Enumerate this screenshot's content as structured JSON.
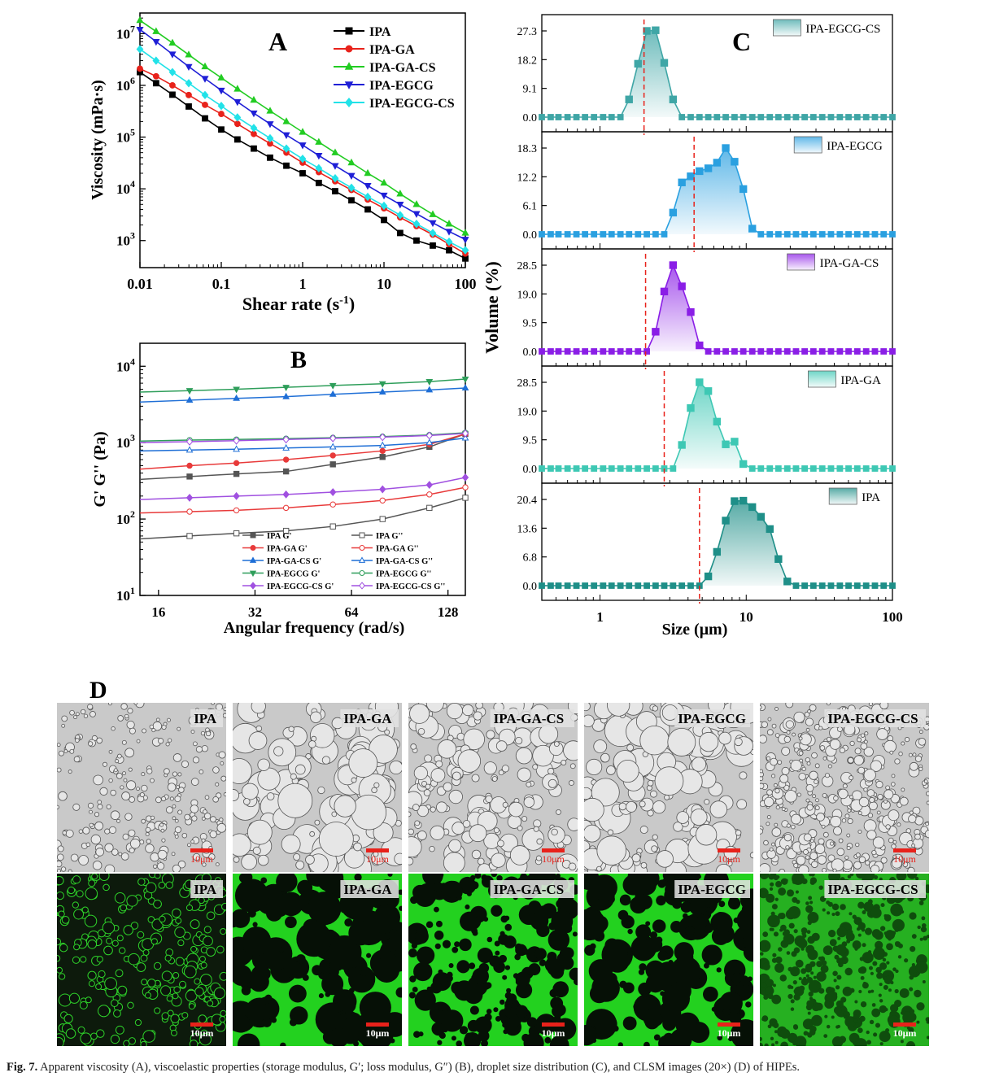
{
  "figure": {
    "caption_label": "Fig. 7.",
    "caption_text": "Apparent viscosity (A), viscoelastic properties (storage modulus, G′; loss modulus, G″) (B), droplet size distribution (C), and CLSM images (20×) (D) of HIPEs."
  },
  "panels": {
    "A": "A",
    "B": "B",
    "C": "C",
    "D": "D",
    "scale_bar": "10μm",
    "image_labels": [
      "IPA",
      "IPA-GA",
      "IPA-GA-CS",
      "IPA-EGCG",
      "IPA-EGCG-CS"
    ]
  },
  "colors": {
    "IPA": "#000000",
    "IPA-GA": "#e8221b",
    "IPA-GA-CS": "#22cc22",
    "IPA-EGCG": "#1f1fd6",
    "IPA-EGCG-CS": "#22e2e8",
    "B_IPA": "#555555",
    "B_IPA-GA": "#e83a3a",
    "B_IPA-GA-CS": "#1f6fd6",
    "B_IPA-EGCG": "#2e9e5a",
    "B_IPA-EGCG-CS": "#a050e0",
    "C_IPA-EGCG-CS": "#3fa6a6",
    "C_IPA-EGCG": "#2aa0e0",
    "C_IPA-GA-CS": "#8a1ee6",
    "C_IPA-GA": "#3ec8b4",
    "C_IPA": "#1f8f88",
    "median_line": "#e8221b",
    "clsm_green": "#23d11f"
  },
  "chart_data": [
    {
      "panel": "A",
      "type": "line",
      "xlabel": "Shear rate (s-1)",
      "ylabel": "Viscosity (mPa·s)",
      "x_scale": "log",
      "y_scale": "log",
      "xlim": [
        0.01,
        100
      ],
      "ylim": [
        300,
        25000000
      ],
      "x_ticks": [
        "0.01",
        "0.1",
        "1",
        "10",
        "100"
      ],
      "y_ticks": [
        "10^3",
        "10^4",
        "10^5",
        "10^6",
        "10^7"
      ],
      "legend": "top-right",
      "x": [
        0.01,
        0.0158,
        0.0251,
        0.0398,
        0.0631,
        0.1,
        0.158,
        0.251,
        0.398,
        0.631,
        1,
        1.58,
        2.51,
        3.98,
        6.31,
        10,
        15.8,
        25.1,
        39.8,
        63.1,
        100
      ],
      "series": [
        {
          "name": "IPA",
          "marker": "square",
          "values": [
            1800000,
            1100000,
            660000,
            390000,
            230000,
            140000,
            90000,
            60000,
            40000,
            28000,
            20000,
            13000,
            9000,
            6000,
            4000,
            2500,
            1400,
            1000,
            800,
            650,
            450
          ]
        },
        {
          "name": "IPA-GA",
          "marker": "circle",
          "values": [
            2100000,
            1500000,
            1000000,
            650000,
            420000,
            280000,
            180000,
            115000,
            75000,
            50000,
            32000,
            21000,
            14000,
            9500,
            6200,
            4200,
            2800,
            1900,
            1300,
            850,
            560
          ]
        },
        {
          "name": "IPA-GA-CS",
          "marker": "triangle-up",
          "values": [
            18000000,
            11000000,
            6600000,
            3900000,
            2300000,
            1400000,
            850000,
            520000,
            320000,
            200000,
            125000,
            80000,
            50000,
            32000,
            20000,
            13000,
            8000,
            5000,
            3200,
            2100,
            1400
          ]
        },
        {
          "name": "IPA-EGCG",
          "marker": "triangle-down",
          "values": [
            12000000,
            7000000,
            4000000,
            2300000,
            1350000,
            800000,
            480000,
            290000,
            180000,
            110000,
            70000,
            44000,
            28000,
            18000,
            11500,
            7500,
            5000,
            3300,
            2200,
            1500,
            1050
          ]
        },
        {
          "name": "IPA-EGCG-CS",
          "marker": "diamond",
          "values": [
            5000000,
            3000000,
            1800000,
            1100000,
            650000,
            400000,
            240000,
            150000,
            95000,
            60000,
            38000,
            25000,
            16000,
            10500,
            7000,
            4700,
            3100,
            2100,
            1400,
            950,
            650
          ]
        }
      ]
    },
    {
      "panel": "B",
      "type": "line",
      "xlabel": "Angular frequency (rad/s)",
      "ylabel": "G' G'' (Pa)",
      "x_scale": "log2",
      "y_scale": "log",
      "xlim": [
        14,
        145
      ],
      "ylim": [
        10,
        20000
      ],
      "x_ticks": [
        "16",
        "32",
        "64",
        "128"
      ],
      "y_ticks": [
        "10^1",
        "10^2",
        "10^3",
        "10^4"
      ],
      "legend": "bottom-left",
      "x": [
        14,
        20,
        28,
        40,
        56,
        80,
        112,
        145
      ],
      "series": [
        {
          "name": "IPA G'",
          "filled": true,
          "marker": "square",
          "values": [
            330,
            360,
            390,
            420,
            520,
            650,
            880,
            1300
          ]
        },
        {
          "name": "IPA G''",
          "filled": false,
          "marker": "square",
          "values": [
            55,
            60,
            65,
            70,
            80,
            100,
            140,
            190
          ]
        },
        {
          "name": "IPA-GA G'",
          "filled": true,
          "marker": "circle",
          "values": [
            450,
            500,
            540,
            600,
            680,
            780,
            950,
            1300
          ]
        },
        {
          "name": "IPA-GA G''",
          "filled": false,
          "marker": "circle",
          "values": [
            120,
            125,
            130,
            140,
            155,
            175,
            210,
            260
          ]
        },
        {
          "name": "IPA-GA-CS G'",
          "filled": true,
          "marker": "triangle-up",
          "values": [
            3400,
            3600,
            3800,
            4000,
            4300,
            4600,
            4900,
            5200
          ]
        },
        {
          "name": "IPA-GA-CS G''",
          "filled": false,
          "marker": "triangle-up",
          "values": [
            780,
            800,
            820,
            850,
            880,
            920,
            1000,
            1150
          ]
        },
        {
          "name": "IPA-EGCG G'",
          "filled": true,
          "marker": "triangle-down",
          "values": [
            4600,
            4800,
            5000,
            5300,
            5600,
            5900,
            6300,
            6800
          ]
        },
        {
          "name": "IPA-EGCG G''",
          "filled": false,
          "marker": "circle",
          "values": [
            1050,
            1080,
            1100,
            1130,
            1160,
            1200,
            1260,
            1350
          ]
        },
        {
          "name": "IPA-EGCG-CS G'",
          "filled": true,
          "marker": "diamond",
          "values": [
            180,
            190,
            200,
            210,
            225,
            245,
            280,
            350
          ]
        },
        {
          "name": "IPA-EGCG-CS G''",
          "filled": false,
          "marker": "diamond",
          "values": [
            1000,
            1030,
            1060,
            1100,
            1140,
            1180,
            1240,
            1320
          ]
        }
      ]
    },
    {
      "panel": "C",
      "type": "area",
      "xlabel": "Size (μm)",
      "ylabel": "Volume (%)",
      "x_scale": "log",
      "xlim": [
        0.4,
        100
      ],
      "x_ticks": [
        "1",
        "10",
        "100"
      ],
      "legend": "top-right",
      "x": [
        0.4,
        0.46,
        0.52,
        0.6,
        0.69,
        0.79,
        0.91,
        1.05,
        1.2,
        1.38,
        1.58,
        1.82,
        2.09,
        2.4,
        2.75,
        3.16,
        3.63,
        4.17,
        4.79,
        5.5,
        6.31,
        7.24,
        8.32,
        9.55,
        11,
        12.6,
        14.5,
        16.6,
        19.1,
        21.9,
        25.1,
        28.8,
        33.1,
        38,
        43.7,
        50.1,
        57.5,
        66.1,
        75.9,
        87.1,
        100
      ],
      "subplots": [
        {
          "name": "IPA-EGCG-CS",
          "yticks": [
            0.0,
            9.1,
            18.2,
            27.3
          ],
          "ymax": 30.5,
          "median": 2.0,
          "values": [
            0,
            0,
            0,
            0,
            0,
            0,
            0,
            0,
            0,
            0,
            5.6,
            16.9,
            27.3,
            27.5,
            17.2,
            5.6,
            0,
            0,
            0,
            0,
            0,
            0,
            0,
            0,
            0,
            0,
            0,
            0,
            0,
            0,
            0,
            0,
            0,
            0,
            0,
            0,
            0,
            0,
            0,
            0,
            0
          ]
        },
        {
          "name": "IPA-EGCG",
          "yticks": [
            0.0,
            6.1,
            12.2,
            18.3
          ],
          "ymax": 20.5,
          "median": 4.4,
          "values": [
            0,
            0,
            0,
            0,
            0,
            0,
            0,
            0,
            0,
            0,
            0,
            0,
            0,
            0,
            0,
            4.6,
            11.0,
            12.3,
            13.4,
            14.0,
            15.2,
            18.3,
            15.4,
            9.6,
            1.2,
            0,
            0,
            0,
            0,
            0,
            0,
            0,
            0,
            0,
            0,
            0,
            0,
            0,
            0,
            0,
            0
          ]
        },
        {
          "name": "IPA-GA-CS",
          "yticks": [
            0.0,
            9.5,
            19.0,
            28.5
          ],
          "ymax": 31.5,
          "median": 2.05,
          "values": [
            0,
            0,
            0,
            0,
            0,
            0,
            0,
            0,
            0,
            0,
            0,
            0,
            0,
            6.5,
            19.8,
            28.5,
            21.5,
            13.0,
            2.0,
            0,
            0,
            0,
            0,
            0,
            0,
            0,
            0,
            0,
            0,
            0,
            0,
            0,
            0,
            0,
            0,
            0,
            0,
            0,
            0,
            0,
            0
          ]
        },
        {
          "name": "IPA-GA",
          "yticks": [
            0.0,
            9.5,
            19.0,
            28.5
          ],
          "ymax": 31.5,
          "median": 2.75,
          "values": [
            0,
            0,
            0,
            0,
            0,
            0,
            0,
            0,
            0,
            0,
            0,
            0,
            0,
            0,
            0,
            0,
            7.8,
            20.0,
            28.5,
            25.6,
            15.5,
            8.0,
            8.9,
            1.5,
            0,
            0,
            0,
            0,
            0,
            0,
            0,
            0,
            0,
            0,
            0,
            0,
            0,
            0,
            0,
            0,
            0
          ]
        },
        {
          "name": "IPA",
          "yticks": [
            0.0,
            6.8,
            13.6,
            20.4
          ],
          "ymax": 22.5,
          "median": 4.79,
          "values": [
            0,
            0,
            0,
            0,
            0,
            0,
            0,
            0,
            0,
            0,
            0,
            0,
            0,
            0,
            0,
            0,
            0,
            0,
            0,
            2.2,
            8.0,
            15.4,
            20.0,
            20.1,
            18.6,
            16.3,
            13.4,
            6.3,
            1.0,
            0,
            0,
            0,
            0,
            0,
            0,
            0,
            0,
            0,
            0,
            0,
            0
          ]
        }
      ]
    }
  ]
}
